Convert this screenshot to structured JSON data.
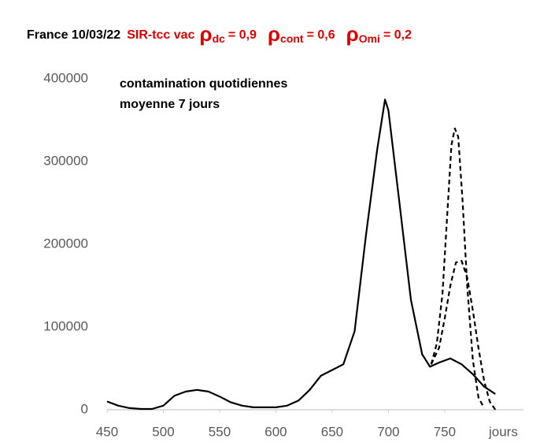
{
  "chart_data": {
    "type": "line",
    "title": "France 10/03/22",
    "model": "SIR-tcc vac",
    "parameters": [
      {
        "symbol": "ρ",
        "subscript": "dc",
        "value": "= 0,9"
      },
      {
        "symbol": "ρ",
        "subscript": "cont",
        "value": "= 0,6"
      },
      {
        "symbol": "ρ",
        "subscript": "Omi",
        "value": "= 0,2"
      }
    ],
    "annotation": [
      "contamination quotidiennes",
      "moyenne 7 jours"
    ],
    "x_label": "jours",
    "xlim": [
      450,
      820
    ],
    "xticks": [
      450,
      500,
      550,
      600,
      650,
      700,
      750
    ],
    "ylim": [
      0,
      400000
    ],
    "yticks": [
      0,
      100000,
      200000,
      300000,
      400000
    ],
    "series": [
      {
        "color": "#000000",
        "dash": false,
        "x": [
          450,
          460,
          470,
          480,
          490,
          500,
          510,
          520,
          530,
          540,
          550,
          560,
          570,
          580,
          590,
          600,
          610,
          620,
          630,
          640,
          650,
          660,
          670,
          680,
          690,
          697,
          700,
          710,
          720,
          730,
          737,
          745,
          755,
          765,
          775,
          785,
          795
        ],
        "values": [
          10000,
          5000,
          2000,
          1000,
          1000,
          5000,
          17000,
          22000,
          24000,
          22000,
          16000,
          9000,
          5000,
          3000,
          3000,
          3000,
          5000,
          11000,
          24000,
          41000,
          48000,
          55000,
          95000,
          210000,
          314000,
          375000,
          362000,
          248000,
          133000,
          67000,
          52000,
          57000,
          62000,
          55000,
          43000,
          28000,
          19000
        ]
      },
      {
        "color": "#000000",
        "dash": true,
        "x": [
          738,
          743,
          748,
          752,
          756,
          759,
          762,
          766,
          770,
          775,
          780,
          785
        ],
        "values": [
          55000,
          80000,
          140000,
          230000,
          320000,
          340000,
          330000,
          250000,
          150000,
          60000,
          15000,
          2000
        ]
      },
      {
        "color": "#000000",
        "dash": true,
        "x": [
          738,
          745,
          750,
          755,
          760,
          765,
          770,
          775,
          780,
          785,
          790,
          795
        ],
        "values": [
          55000,
          75000,
          110000,
          150000,
          178000,
          180000,
          160000,
          120000,
          75000,
          35000,
          10000,
          0
        ]
      }
    ]
  }
}
